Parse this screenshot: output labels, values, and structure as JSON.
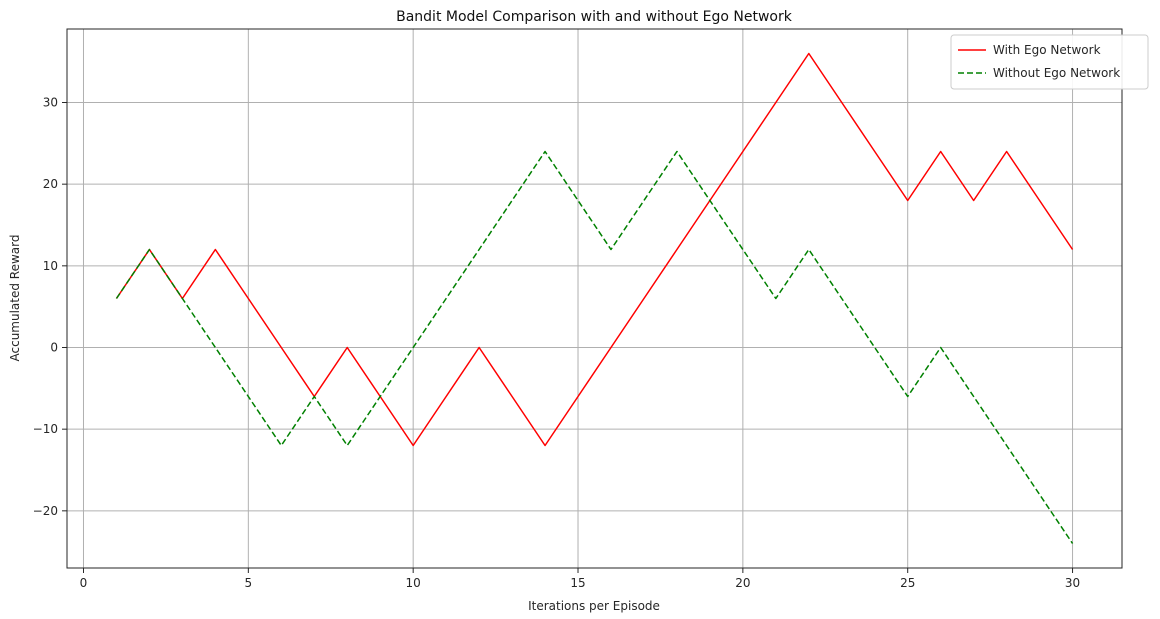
{
  "chart_data": {
    "type": "line",
    "title": "Bandit Model Comparison with and without Ego Network",
    "xlabel": "Iterations per Episode",
    "ylabel": "Accumulated Reward",
    "xlim": [
      -0.5,
      31.5
    ],
    "ylim": [
      -27,
      39
    ],
    "xticks": [
      0,
      5,
      10,
      15,
      20,
      25,
      30
    ],
    "yticks": [
      -20,
      -10,
      0,
      10,
      20,
      30
    ],
    "xtick_labels": [
      "0",
      "5",
      "10",
      "15",
      "20",
      "25",
      "30"
    ],
    "ytick_labels": [
      "−20",
      "−10",
      "0",
      "10",
      "20",
      "30"
    ],
    "grid": true,
    "legend_position": "top-right",
    "x": [
      1,
      2,
      3,
      4,
      5,
      6,
      7,
      8,
      9,
      10,
      11,
      12,
      13,
      14,
      15,
      16,
      17,
      18,
      19,
      20,
      21,
      22,
      23,
      24,
      25,
      26,
      27,
      28,
      29,
      30
    ],
    "series": [
      {
        "name": "With Ego Network",
        "color": "#ff0000",
        "style": "solid",
        "values": [
          6,
          12,
          6,
          12,
          6,
          0,
          -6,
          0,
          -6,
          -12,
          -6,
          0,
          -6,
          -12,
          -6,
          0,
          6,
          12,
          18,
          24,
          30,
          36,
          30,
          24,
          18,
          24,
          18,
          24,
          18,
          12
        ]
      },
      {
        "name": "Without Ego Network",
        "color": "#008000",
        "style": "dashed",
        "values": [
          6,
          12,
          6,
          0,
          -6,
          -12,
          -6,
          -12,
          -6,
          0,
          6,
          12,
          18,
          24,
          18,
          12,
          18,
          24,
          18,
          12,
          6,
          12,
          6,
          0,
          -6,
          0,
          -6,
          -12,
          -18,
          -24
        ]
      }
    ]
  }
}
